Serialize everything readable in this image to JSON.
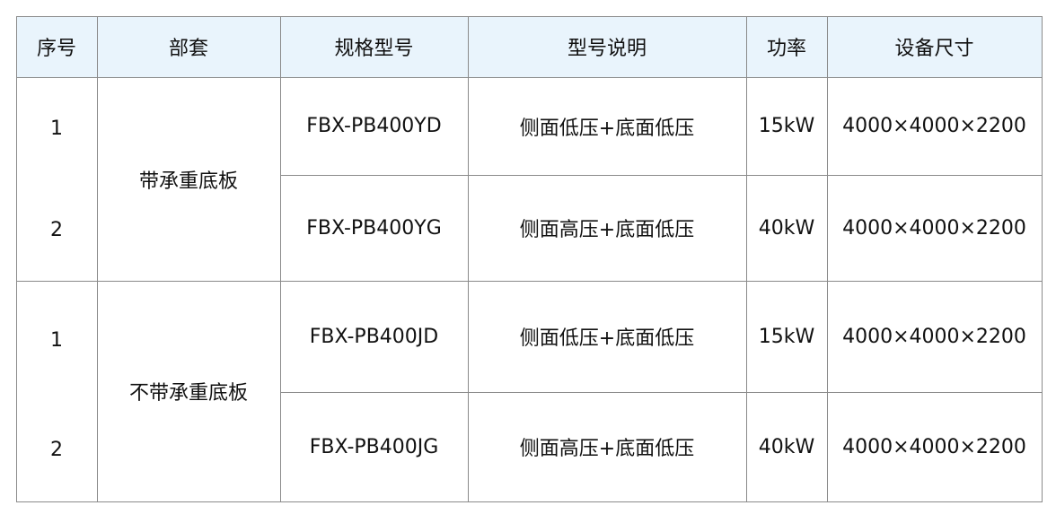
{
  "header": [
    "序号",
    "部套",
    "规格型号",
    "型号说明",
    "功率",
    "设备尺寸"
  ],
  "groups": [
    {
      "name": "带承重底板",
      "rows": [
        {
          "no": "1",
          "model": "FBX-PB400YD",
          "desc": "侧面低压+底面低压",
          "power": "15kW",
          "size": "4000×4000×2200"
        },
        {
          "no": "2",
          "model": "FBX-PB400YG",
          "desc": "侧面高压+底面低压",
          "power": "40kW",
          "size": "4000×4000×2200"
        }
      ]
    },
    {
      "name": "不带承重底板",
      "rows": [
        {
          "no": "1",
          "model": "FBX-PB400JD",
          "desc": "侧面低压+底面低压",
          "power": "15kW",
          "size": "4000×4000×2200"
        },
        {
          "no": "2",
          "model": "FBX-PB400JG",
          "desc": "侧面高压+底面低压",
          "power": "40kW",
          "size": "4000×4000×2200"
        }
      ]
    }
  ],
  "colors": {
    "header_bg": "#e9f4fc",
    "border": "#8a8a8a"
  }
}
